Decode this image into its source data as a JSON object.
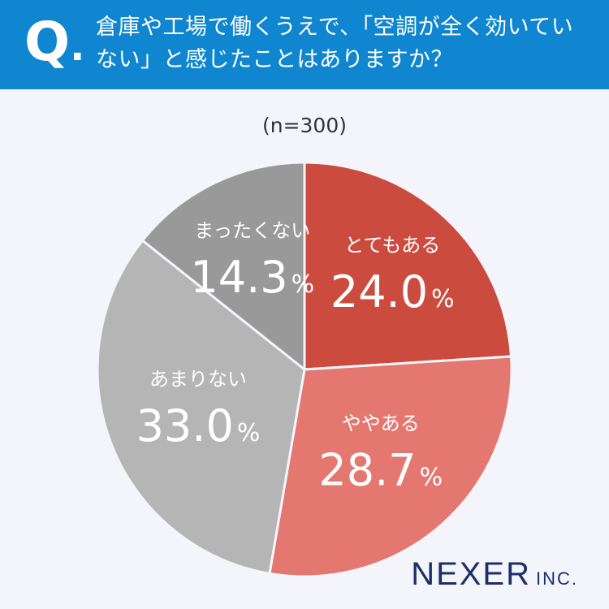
{
  "question": {
    "mark": "Q",
    "dot": ".",
    "text": "倉庫や工場で働くうえで、「空調が全く効いていない」と感じたことはありますか？"
  },
  "brand": {
    "main": "NEXER",
    "sub": "INC."
  },
  "colors": {
    "header": "#0f86cf",
    "background": "#f3f5fb",
    "brand": "#1d2e6b"
  },
  "chart_data": {
    "type": "pie",
    "subtitle": "(n=300)",
    "unit": "%",
    "start": "12 o'clock",
    "direction": "clockwise",
    "slices": [
      {
        "label": "とてもある",
        "value": 24.0,
        "value_text": "24.0",
        "color": "#cc4b3f"
      },
      {
        "label": "ややある",
        "value": 28.7,
        "value_text": "28.7",
        "color": "#e47770"
      },
      {
        "label": "あまりない",
        "value": 33.0,
        "value_text": "33.0",
        "color": "#b5b5b5"
      },
      {
        "label": "まったくない",
        "value": 14.3,
        "value_text": "14.3",
        "color": "#999999"
      }
    ]
  }
}
